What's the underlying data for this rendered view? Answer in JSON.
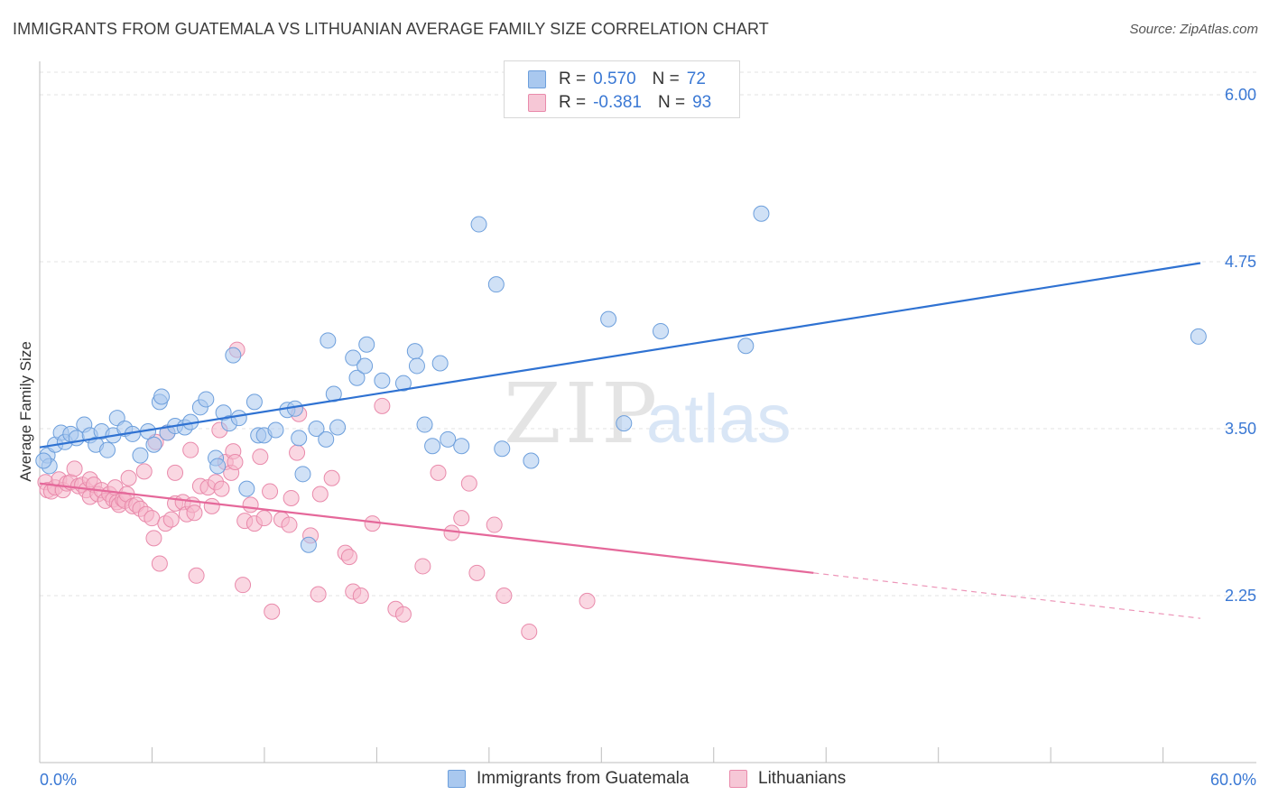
{
  "title": "IMMIGRANTS FROM GUATEMALA VS LITHUANIAN AVERAGE FAMILY SIZE CORRELATION CHART",
  "source": "Source: ZipAtlas.com",
  "watermark": {
    "zip": "ZIP",
    "atlas": "atlas"
  },
  "legend": {
    "rows": [
      {
        "r_label": "R =",
        "r_value": "0.570",
        "n_label": "N =",
        "n_value": "72"
      },
      {
        "r_label": "R =",
        "r_value": "-0.381",
        "n_label": "N =",
        "n_value": "93"
      }
    ]
  },
  "bottom_legend": {
    "series1": "Immigrants from Guatemala",
    "series2": "Lithuanians"
  },
  "colors": {
    "blue_fill": "#a9c8ef",
    "blue_stroke": "#6d9fdc",
    "blue_line": "#2f72d2",
    "pink_fill": "#f6b6cb",
    "pink_stroke": "#e98aab",
    "pink_line": "#e5689a",
    "tick_label": "#3a78d4",
    "grid": "#e3e3e3"
  },
  "chart_data": {
    "type": "scatter",
    "title": "IMMIGRANTS FROM GUATEMALA VS LITHUANIAN AVERAGE FAMILY SIZE CORRELATION CHART",
    "xlabel": "",
    "ylabel": "Average Family Size",
    "xlim": [
      0,
      60
    ],
    "ylim": [
      1.0,
      6.25
    ],
    "x_tick_labels": [
      "0.0%",
      "60.0%"
    ],
    "y_ticks": [
      2.25,
      3.5,
      4.75,
      6.0
    ],
    "y_tick_labels": [
      "2.25",
      "3.50",
      "4.75",
      "6.00"
    ],
    "grid": true,
    "legend_position": "top-center",
    "series": [
      {
        "name": "Immigrants from Guatemala",
        "color": "#a9c8ef",
        "trend": {
          "x": [
            0,
            60
          ],
          "y": [
            3.36,
            4.74
          ],
          "dashed_from": null
        },
        "points": [
          [
            0.4,
            3.3
          ],
          [
            0.5,
            3.22
          ],
          [
            0.8,
            3.38
          ],
          [
            1.1,
            3.47
          ],
          [
            1.3,
            3.4
          ],
          [
            1.6,
            3.46
          ],
          [
            1.9,
            3.43
          ],
          [
            2.3,
            3.53
          ],
          [
            2.6,
            3.45
          ],
          [
            2.9,
            3.38
          ],
          [
            3.2,
            3.48
          ],
          [
            3.5,
            3.34
          ],
          [
            3.8,
            3.45
          ],
          [
            4.0,
            3.58
          ],
          [
            4.4,
            3.5
          ],
          [
            4.8,
            3.46
          ],
          [
            5.2,
            3.3
          ],
          [
            5.6,
            3.48
          ],
          [
            5.9,
            3.38
          ],
          [
            6.2,
            3.7
          ],
          [
            6.3,
            3.74
          ],
          [
            6.6,
            3.47
          ],
          [
            7.0,
            3.52
          ],
          [
            7.5,
            3.51
          ],
          [
            7.8,
            3.55
          ],
          [
            8.3,
            3.66
          ],
          [
            8.6,
            3.72
          ],
          [
            9.1,
            3.28
          ],
          [
            9.2,
            3.22
          ],
          [
            9.5,
            3.62
          ],
          [
            9.8,
            3.54
          ],
          [
            10.0,
            4.05
          ],
          [
            10.3,
            3.58
          ],
          [
            10.7,
            3.05
          ],
          [
            11.1,
            3.7
          ],
          [
            11.3,
            3.45
          ],
          [
            11.6,
            3.45
          ],
          [
            12.2,
            3.49
          ],
          [
            12.8,
            3.64
          ],
          [
            13.2,
            3.65
          ],
          [
            13.4,
            3.43
          ],
          [
            13.6,
            3.16
          ],
          [
            13.9,
            2.63
          ],
          [
            14.3,
            3.5
          ],
          [
            14.8,
            3.42
          ],
          [
            14.9,
            4.16
          ],
          [
            15.2,
            3.76
          ],
          [
            15.4,
            3.51
          ],
          [
            16.2,
            4.03
          ],
          [
            16.4,
            3.88
          ],
          [
            16.8,
            3.97
          ],
          [
            16.9,
            4.13
          ],
          [
            17.7,
            3.86
          ],
          [
            18.8,
            3.84
          ],
          [
            19.4,
            4.08
          ],
          [
            19.5,
            3.97
          ],
          [
            19.9,
            3.53
          ],
          [
            20.3,
            3.37
          ],
          [
            20.7,
            3.99
          ],
          [
            21.1,
            3.42
          ],
          [
            21.8,
            3.37
          ],
          [
            22.7,
            5.03
          ],
          [
            23.6,
            4.58
          ],
          [
            23.9,
            3.35
          ],
          [
            25.4,
            3.26
          ],
          [
            29.4,
            4.32
          ],
          [
            30.2,
            3.54
          ],
          [
            32.1,
            4.23
          ],
          [
            36.5,
            4.12
          ],
          [
            37.3,
            5.11
          ],
          [
            59.9,
            4.19
          ],
          [
            0.2,
            3.26
          ]
        ]
      },
      {
        "name": "Lithuanians",
        "color": "#f6b6cb",
        "trend": {
          "x": [
            0,
            40
          ],
          "y": [
            3.09,
            2.42
          ],
          "dashed_to": {
            "x": 60,
            "y": 2.08
          }
        },
        "points": [
          [
            0.3,
            3.1
          ],
          [
            0.4,
            3.04
          ],
          [
            0.6,
            3.03
          ],
          [
            0.8,
            3.06
          ],
          [
            1.0,
            3.12
          ],
          [
            1.2,
            3.04
          ],
          [
            1.4,
            3.09
          ],
          [
            1.6,
            3.1
          ],
          [
            1.8,
            3.2
          ],
          [
            2.0,
            3.07
          ],
          [
            2.2,
            3.08
          ],
          [
            2.4,
            3.04
          ],
          [
            2.6,
            3.12
          ],
          [
            2.6,
            2.99
          ],
          [
            2.8,
            3.08
          ],
          [
            3.0,
            3.01
          ],
          [
            3.2,
            3.04
          ],
          [
            3.4,
            2.96
          ],
          [
            3.6,
            3.01
          ],
          [
            3.8,
            2.97
          ],
          [
            3.9,
            3.06
          ],
          [
            4.0,
            2.95
          ],
          [
            4.1,
            2.93
          ],
          [
            4.3,
            2.97
          ],
          [
            4.4,
            2.96
          ],
          [
            4.5,
            3.01
          ],
          [
            4.6,
            3.13
          ],
          [
            4.8,
            2.92
          ],
          [
            5.0,
            2.93
          ],
          [
            5.2,
            2.9
          ],
          [
            5.4,
            3.18
          ],
          [
            5.5,
            2.86
          ],
          [
            5.8,
            2.83
          ],
          [
            5.9,
            2.68
          ],
          [
            6.0,
            3.4
          ],
          [
            6.2,
            2.49
          ],
          [
            6.5,
            2.79
          ],
          [
            6.6,
            3.47
          ],
          [
            6.8,
            2.82
          ],
          [
            7.0,
            2.94
          ],
          [
            7.0,
            3.17
          ],
          [
            7.4,
            2.95
          ],
          [
            7.6,
            2.86
          ],
          [
            7.8,
            3.34
          ],
          [
            7.9,
            2.93
          ],
          [
            8.0,
            2.87
          ],
          [
            8.1,
            2.4
          ],
          [
            8.3,
            3.07
          ],
          [
            8.7,
            3.06
          ],
          [
            8.9,
            2.92
          ],
          [
            9.1,
            3.1
          ],
          [
            9.3,
            3.49
          ],
          [
            9.4,
            3.05
          ],
          [
            9.6,
            3.25
          ],
          [
            9.9,
            3.17
          ],
          [
            10.0,
            3.33
          ],
          [
            10.1,
            3.25
          ],
          [
            10.2,
            4.09
          ],
          [
            10.5,
            2.33
          ],
          [
            10.6,
            2.81
          ],
          [
            10.9,
            2.93
          ],
          [
            11.1,
            2.79
          ],
          [
            11.4,
            3.29
          ],
          [
            11.6,
            2.83
          ],
          [
            11.9,
            3.03
          ],
          [
            12.0,
            2.13
          ],
          [
            12.5,
            2.82
          ],
          [
            12.9,
            2.78
          ],
          [
            13.0,
            2.98
          ],
          [
            13.3,
            3.32
          ],
          [
            13.4,
            3.61
          ],
          [
            14.0,
            2.7
          ],
          [
            14.4,
            2.26
          ],
          [
            14.5,
            3.01
          ],
          [
            15.1,
            3.13
          ],
          [
            15.8,
            2.57
          ],
          [
            16.0,
            2.54
          ],
          [
            16.2,
            2.28
          ],
          [
            16.6,
            2.25
          ],
          [
            17.2,
            2.79
          ],
          [
            17.7,
            3.67
          ],
          [
            18.4,
            2.15
          ],
          [
            18.8,
            2.11
          ],
          [
            19.8,
            2.47
          ],
          [
            20.6,
            3.17
          ],
          [
            21.3,
            2.72
          ],
          [
            21.8,
            2.83
          ],
          [
            22.2,
            3.09
          ],
          [
            22.6,
            2.42
          ],
          [
            23.5,
            2.78
          ],
          [
            24.0,
            2.25
          ],
          [
            25.3,
            1.98
          ],
          [
            28.3,
            2.21
          ]
        ]
      }
    ]
  }
}
